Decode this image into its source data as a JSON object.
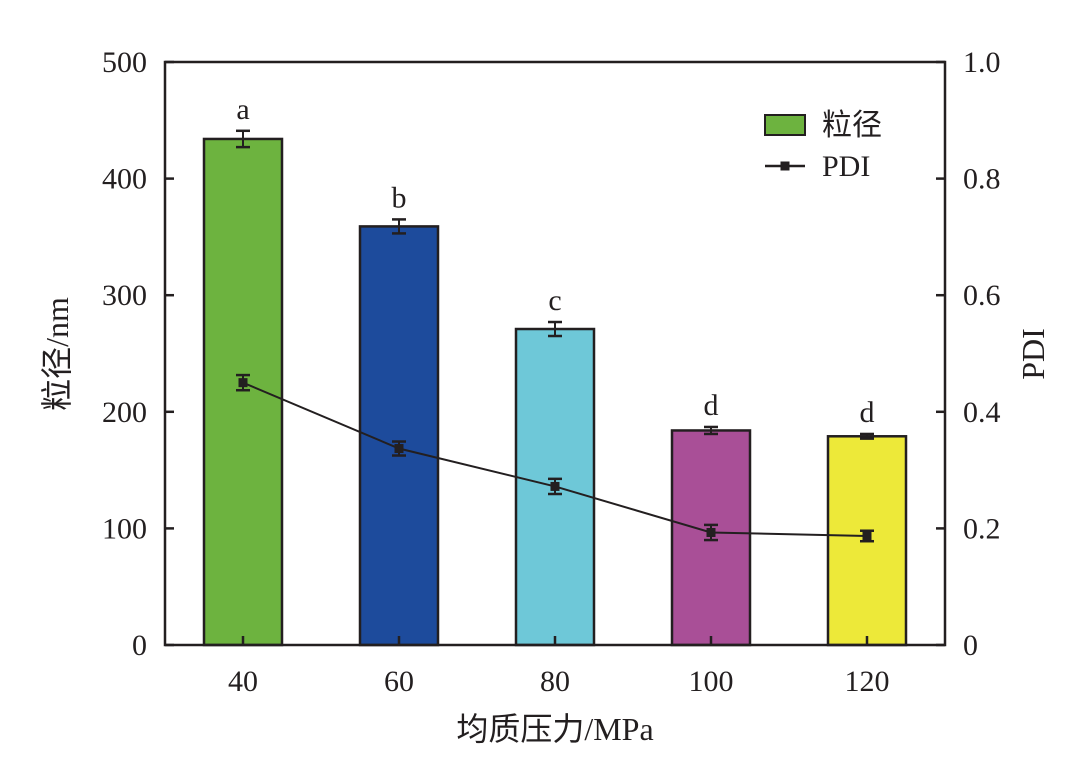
{
  "chart_data": {
    "type": "bar",
    "categories": [
      "40",
      "60",
      "80",
      "100",
      "120"
    ],
    "xlabel": "均质压力/MPa",
    "ylabel": "粒径/nm",
    "y2label": "PDI",
    "ylim": [
      0,
      500
    ],
    "y2lim": [
      0,
      1.0
    ],
    "yticks": [
      "0",
      "100",
      "200",
      "300",
      "400",
      "500"
    ],
    "y2ticks": [
      "0",
      "0.2",
      "0.4",
      "0.6",
      "0.8",
      "1.0"
    ],
    "legend_position": "top-right",
    "grid": false,
    "series": [
      {
        "name": "粒径",
        "type": "bar",
        "axis": "left",
        "values": [
          434,
          359,
          271,
          184,
          179
        ],
        "errors": [
          7,
          6,
          6,
          3,
          2
        ],
        "significance": [
          "a",
          "b",
          "c",
          "d",
          "d"
        ],
        "colors": [
          "#6db33f",
          "#1d4b9c",
          "#6ec8d8",
          "#a94f97",
          "#ede939"
        ]
      },
      {
        "name": "PDI",
        "type": "line",
        "axis": "right",
        "values": [
          0.45,
          0.337,
          0.272,
          0.193,
          0.187
        ],
        "errors": [
          0.013,
          0.012,
          0.013,
          0.013,
          0.009
        ],
        "color": "#231f20"
      }
    ]
  }
}
